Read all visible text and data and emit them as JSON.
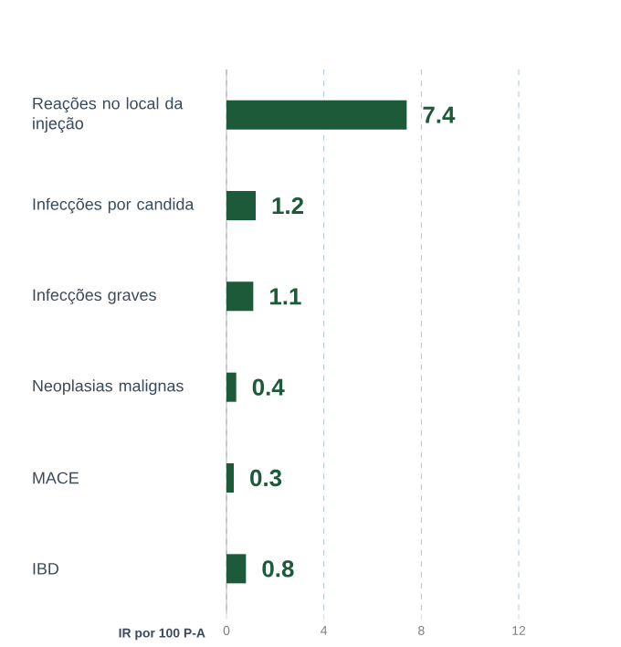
{
  "chart_data": {
    "type": "bar",
    "orientation": "horizontal",
    "categories": [
      "Reações no local da injeção",
      "Infecções por candida",
      "Infecções graves",
      "Neoplasias malignas",
      "MACE",
      "IBD"
    ],
    "values": [
      7.4,
      1.2,
      1.1,
      0.4,
      0.3,
      0.8
    ],
    "color": "#1d5a3a",
    "xlabel": "IR por 100 P-A",
    "xlim": [
      0,
      12
    ],
    "xticks": [
      0,
      4,
      8,
      12
    ],
    "grid": "x",
    "data_labels": true
  }
}
